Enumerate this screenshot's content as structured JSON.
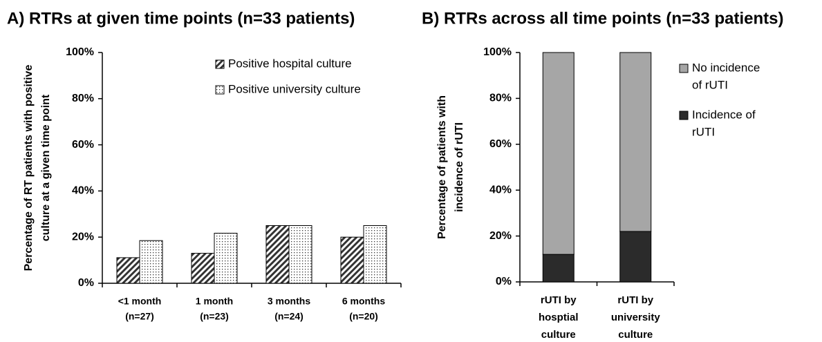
{
  "chart_data": [
    {
      "type": "bar",
      "title": "A) RTRs at given time points (n=33 patients)",
      "y_label": [
        "Percentage of RT patients with positive",
        "culture at a given time point"
      ],
      "categories": [
        [
          "<1 month",
          "(n=27)"
        ],
        [
          "1 month",
          "(n=23)"
        ],
        [
          "3 months",
          "(n=24)"
        ],
        [
          "6 months",
          "(n=20)"
        ]
      ],
      "series": [
        {
          "name": "Positive hospital culture",
          "color": "#333333",
          "pattern": "hatch",
          "values": [
            11.1,
            13.0,
            25.0,
            20.0
          ]
        },
        {
          "name": "Positive university culture",
          "color": "#333333",
          "pattern": "dots",
          "values": [
            18.5,
            21.7,
            25.0,
            25.0
          ]
        }
      ],
      "ylim": [
        0,
        100
      ],
      "yticks": [
        {
          "value": 0,
          "label": "0%"
        },
        {
          "value": 20,
          "label": "20%"
        },
        {
          "value": 40,
          "label": "40%"
        },
        {
          "value": 60,
          "label": "60%"
        },
        {
          "value": 80,
          "label": "80%"
        },
        {
          "value": 100,
          "label": "100%"
        }
      ],
      "legend": "upper right",
      "grid": false
    },
    {
      "type": "stacked_bar",
      "title": "B) RTRs across all time points (n=33 patients)",
      "y_label": [
        "Percentage of patients with",
        "incidence of rUTI"
      ],
      "categories": [
        [
          "rUTI by",
          "hosptial",
          "culture"
        ],
        [
          "rUTI by",
          "university",
          "culture"
        ]
      ],
      "series": [
        {
          "name": [
            "Incidence of",
            "rUTI"
          ],
          "color": "#2b2b2b",
          "values": [
            12,
            22
          ]
        },
        {
          "name": [
            "No incidence",
            "of rUTI"
          ],
          "color": "#a6a6a6",
          "values": [
            88,
            78
          ]
        }
      ],
      "ylim": [
        0,
        100
      ],
      "yticks": [
        {
          "value": 0,
          "label": "0%"
        },
        {
          "value": 20,
          "label": "20%"
        },
        {
          "value": 40,
          "label": "40%"
        },
        {
          "value": 60,
          "label": "60%"
        },
        {
          "value": 80,
          "label": "80%"
        },
        {
          "value": 100,
          "label": "100%"
        }
      ],
      "legend": "upper right",
      "grid": false
    }
  ]
}
